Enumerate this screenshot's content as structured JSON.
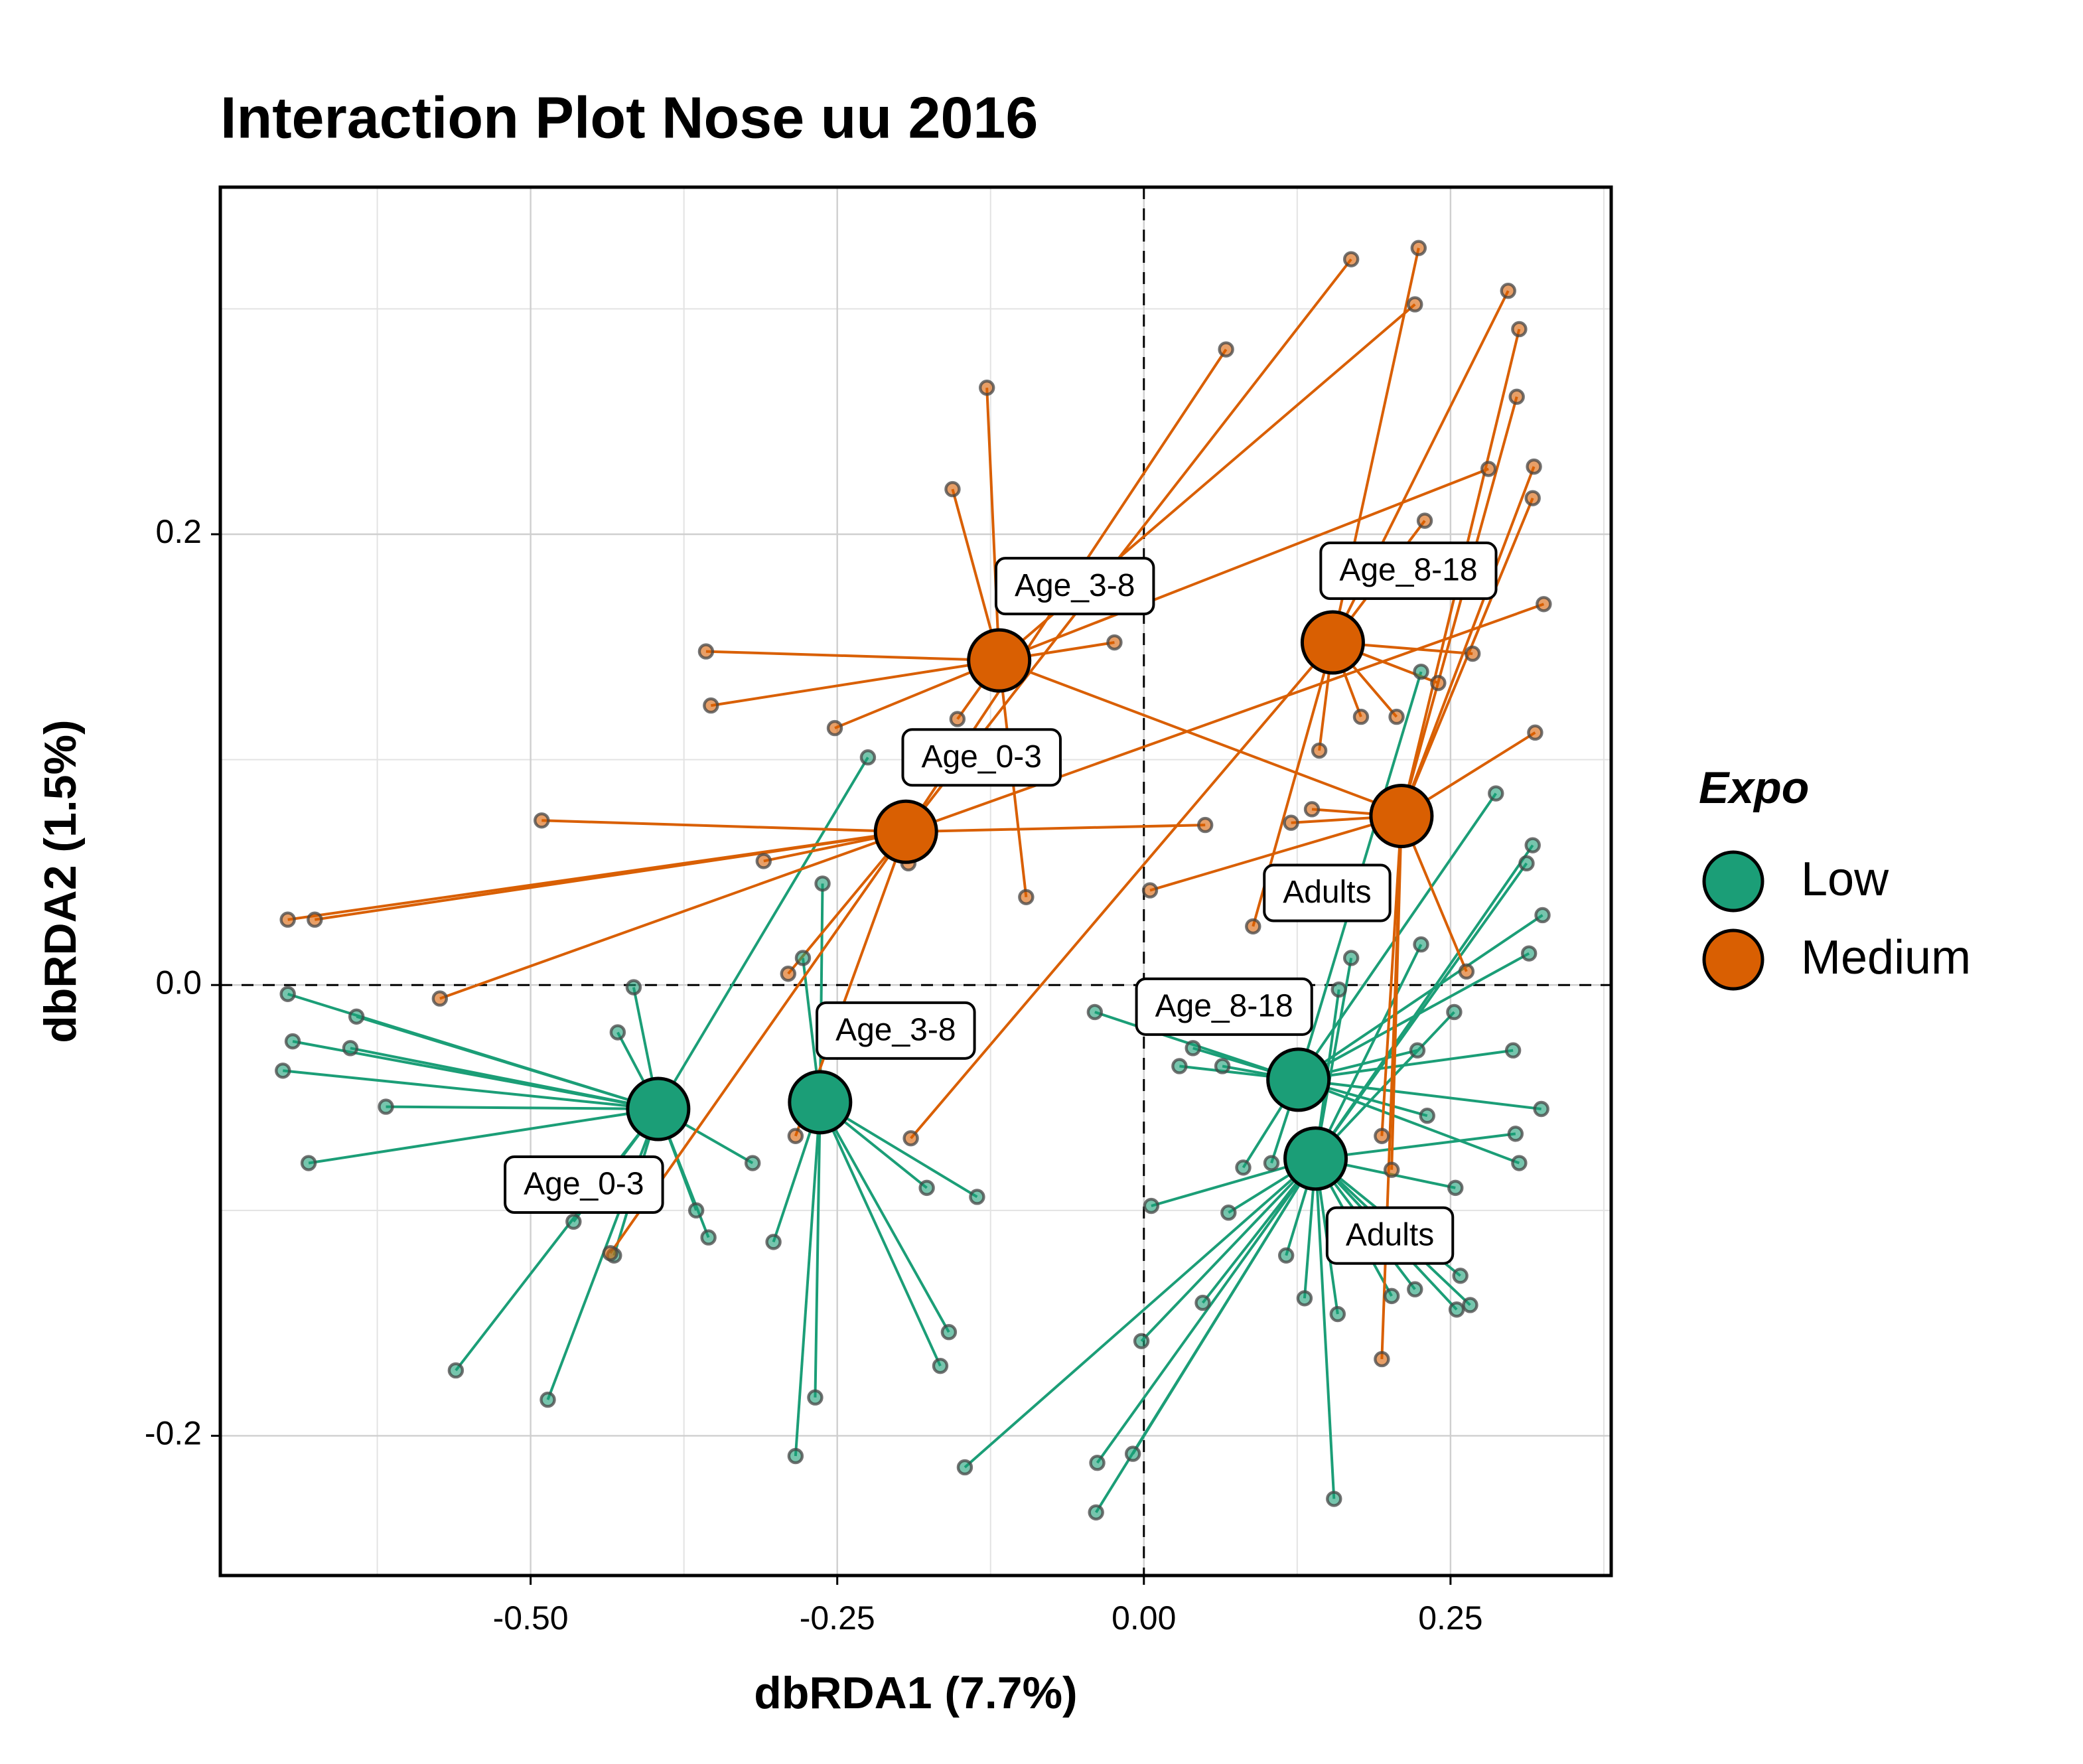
{
  "chart_data": {
    "type": "spider",
    "title": "Interaction Plot Nose uu 2016",
    "x_label": "dbRDA1 (7.7%)",
    "y_label": "dbRDA2 (1.5%)",
    "legend_title": "Expo",
    "legend_position": "right",
    "xlim": [
      -0.753,
      0.381
    ],
    "ylim": [
      -0.262,
      0.354
    ],
    "xticks": [
      {
        "value": -0.5,
        "label": "-0.50"
      },
      {
        "value": -0.25,
        "label": "-0.25"
      },
      {
        "value": 0,
        "label": "0.00"
      },
      {
        "value": 0.25,
        "label": "0.25"
      }
    ],
    "yticks": [
      -0.2,
      {
        "value": 0,
        "label": "0.0"
      },
      0.2
    ],
    "xminorticks": [
      -0.625,
      -0.375,
      -0.125,
      0.125,
      0.375
    ],
    "yminorticks": [
      -0.1,
      0.1,
      0.3
    ],
    "grid": true,
    "zero_lines": true,
    "series": [
      {
        "name": "Low",
        "color": "#1b9e77",
        "groups": [
          {
            "label": "Age_0-3",
            "x": -0.396,
            "y": -0.055,
            "points_x": [
              -0.698,
              -0.694,
              -0.702,
              -0.642,
              -0.647,
              -0.618,
              -0.681,
              -0.561,
              -0.486,
              -0.465,
              -0.432,
              -0.365,
              -0.355,
              -0.416,
              -0.429,
              -0.225,
              -0.319
            ],
            "points_y": [
              -0.004,
              -0.025,
              -0.038,
              -0.014,
              -0.028,
              -0.054,
              -0.079,
              -0.171,
              -0.184,
              -0.105,
              -0.12,
              -0.1,
              -0.112,
              -0.001,
              -0.021,
              0.101,
              -0.079
            ]
          },
          {
            "label": "Age_3-8",
            "x": -0.264,
            "y": -0.052,
            "points_x": [
              -0.278,
              -0.262,
              -0.302,
              -0.284,
              -0.268,
              -0.159,
              -0.166,
              -0.177,
              -0.136
            ],
            "points_y": [
              0.012,
              0.045,
              -0.114,
              -0.209,
              -0.183,
              -0.154,
              -0.169,
              -0.09,
              -0.094
            ]
          },
          {
            "label": "Age_8-18",
            "x": 0.126,
            "y": -0.042,
            "points_x": [
              -0.04,
              0.029,
              0.04,
              0.064,
              0.287,
              0.226,
              0.325,
              0.314,
              0.301,
              0.324,
              0.306,
              0.223,
              0.231,
              0.081,
              0.104
            ],
            "points_y": [
              -0.012,
              -0.036,
              -0.028,
              -0.036,
              0.085,
              0.139,
              0.031,
              0.014,
              -0.029,
              -0.055,
              -0.079,
              -0.029,
              -0.058,
              -0.081,
              -0.079
            ]
          },
          {
            "label": "Adults",
            "x": 0.14,
            "y": -0.077,
            "points_x": [
              0.155,
              0.158,
              0.131,
              0.116,
              0.048,
              0.069,
              0.006,
              -0.002,
              -0.009,
              -0.038,
              -0.039,
              -0.146,
              0.202,
              0.221,
              0.255,
              0.258,
              0.266,
              0.254,
              0.253,
              0.226,
              0.317,
              0.312,
              0.169,
              0.159,
              0.303
            ],
            "points_y": [
              -0.228,
              -0.146,
              -0.139,
              -0.12,
              -0.141,
              -0.101,
              -0.098,
              -0.158,
              -0.208,
              -0.212,
              -0.234,
              -0.214,
              -0.138,
              -0.135,
              -0.144,
              -0.129,
              -0.142,
              -0.09,
              -0.012,
              0.018,
              0.062,
              0.054,
              0.012,
              -0.002,
              -0.066
            ]
          }
        ]
      },
      {
        "name": "Medium",
        "color": "#d95f02",
        "groups": [
          {
            "label": "Age_0-3",
            "x": -0.194,
            "y": 0.068,
            "points_x": [
              -0.491,
              -0.698,
              -0.676,
              -0.574,
              -0.31,
              -0.29,
              0.05,
              0.067,
              0.169,
              0.326,
              -0.192,
              -0.435,
              -0.284
            ],
            "points_y": [
              0.073,
              0.029,
              0.029,
              -0.006,
              0.055,
              0.005,
              0.071,
              0.282,
              0.322,
              0.169,
              0.054,
              -0.119,
              -0.067
            ]
          },
          {
            "label": "Age_3-8",
            "x": -0.118,
            "y": 0.144,
            "points_x": [
              -0.128,
              -0.156,
              -0.357,
              -0.353,
              -0.024,
              -0.252,
              -0.096,
              0.281,
              0.221,
              0.198,
              -0.152
            ],
            "points_y": [
              0.265,
              0.22,
              0.148,
              0.124,
              0.152,
              0.114,
              0.039,
              0.229,
              0.302,
              0.079,
              0.118
            ]
          },
          {
            "label": "Age_8-18",
            "x": 0.154,
            "y": 0.152,
            "points_x": [
              0.297,
              0.268,
              0.24,
              0.177,
              0.143,
              0.089,
              0.206,
              0.229,
              -0.19,
              0.224
            ],
            "points_y": [
              0.308,
              0.147,
              0.134,
              0.119,
              0.104,
              0.026,
              0.119,
              0.206,
              -0.068,
              0.327
            ]
          },
          {
            "label": "Adults",
            "x": 0.21,
            "y": 0.075,
            "points_x": [
              0.306,
              0.304,
              0.318,
              0.317,
              0.263,
              0.319,
              0.137,
              0.12,
              0.005,
              0.194,
              0.194,
              0.202
            ],
            "points_y": [
              0.291,
              0.261,
              0.23,
              0.216,
              0.006,
              0.112,
              0.078,
              0.072,
              0.042,
              -0.067,
              -0.166,
              -0.082
            ]
          }
        ]
      }
    ]
  }
}
